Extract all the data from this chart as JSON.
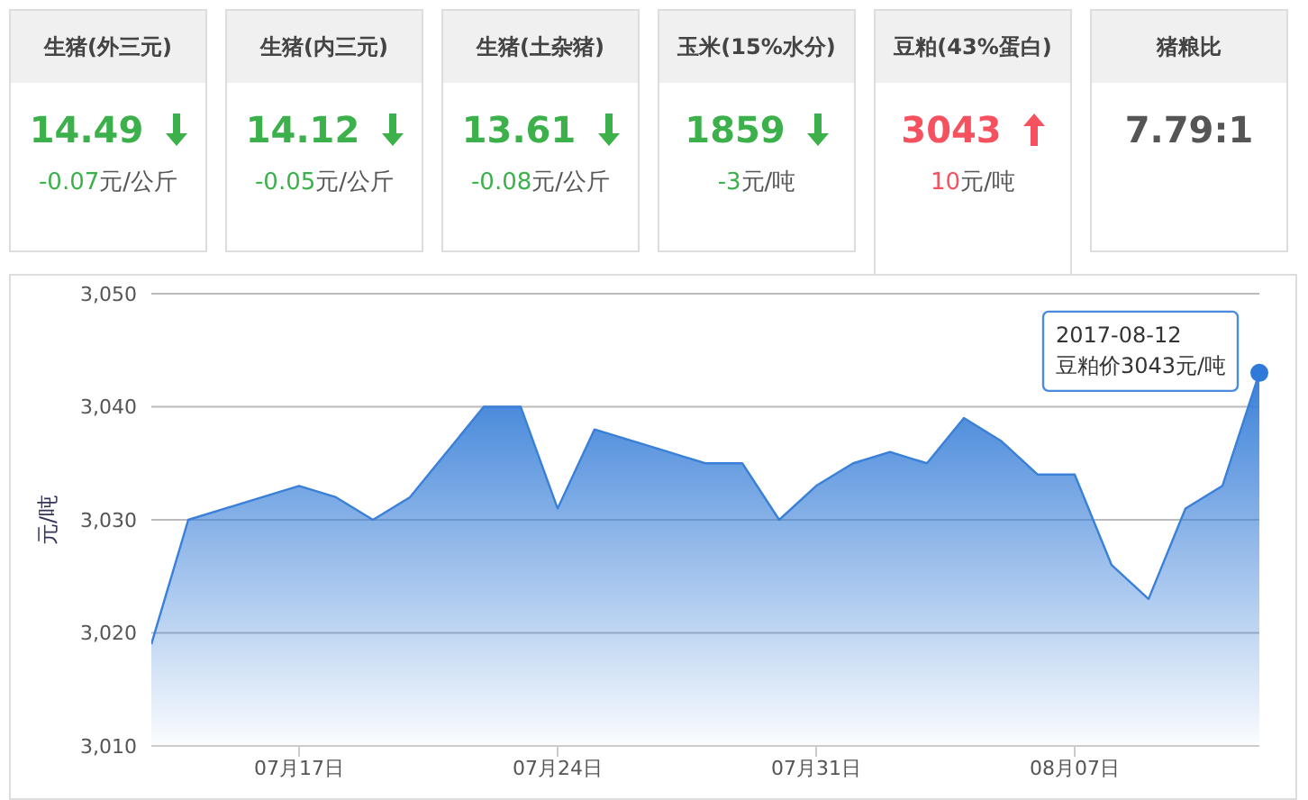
{
  "chart_data": [
    {
      "type": "other",
      "categories": [
        "生猪(外三元)",
        "生猪(内三元)",
        "生猪(土杂猪)",
        "玉米(15%水分)",
        "豆粕(43%蛋白)",
        "猪粮比"
      ],
      "value_labels": [
        "14.49",
        "14.12",
        "13.61",
        "1859",
        "3043",
        "7.79:1"
      ],
      "annotations": [
        "-0.07元/公斤",
        "-0.05元/公斤",
        "-0.08元/公斤",
        "-3元/吨",
        "10元/吨"
      ]
    },
    {
      "type": "area",
      "ylabel": "元/吨",
      "x": [
        "2017-07-13",
        "2017-07-14",
        "2017-07-15",
        "2017-07-16",
        "2017-07-17",
        "2017-07-18",
        "2017-07-19",
        "2017-07-20",
        "2017-07-21",
        "2017-07-22",
        "2017-07-23",
        "2017-07-24",
        "2017-07-25",
        "2017-07-26",
        "2017-07-27",
        "2017-07-28",
        "2017-07-29",
        "2017-07-30",
        "2017-07-31",
        "2017-08-01",
        "2017-08-02",
        "2017-08-03",
        "2017-08-04",
        "2017-08-05",
        "2017-08-06",
        "2017-08-07",
        "2017-08-08",
        "2017-08-09",
        "2017-08-10",
        "2017-08-11",
        "2017-08-12"
      ],
      "series": [
        {
          "color": "#3a80d8",
          "values": [
            3019,
            3030,
            3031,
            3032,
            3033,
            3032,
            3030,
            3032,
            3036,
            3040,
            3040,
            3031,
            3038,
            3037,
            3036,
            3035,
            3035,
            3030,
            3033,
            3035,
            3036,
            3035,
            3039,
            3037,
            3034,
            3034,
            3026,
            3023,
            3031,
            3033,
            3043
          ]
        }
      ],
      "xlim": [
        "2017-07-13",
        "2017-08-12"
      ],
      "xticks": [
        {
          "value": "2017-07-17",
          "label": "07月17日"
        },
        {
          "value": "2017-07-24",
          "label": "07月24日"
        },
        {
          "value": "2017-07-31",
          "label": "07月31日"
        },
        {
          "value": "2017-08-07",
          "label": "08月07日"
        }
      ],
      "ylim": [
        3010,
        3050
      ],
      "yticks": [
        {
          "value": 3010,
          "label": "3,010"
        },
        {
          "value": 3020,
          "label": "3,020"
        },
        {
          "value": 3030,
          "label": "3,030"
        },
        {
          "value": 3040,
          "label": "3,040"
        },
        {
          "value": 3050,
          "label": "3,050"
        }
      ],
      "grid": "y",
      "marker": "none",
      "annotations": [
        {
          "text": "2017-08-12\n豆粕价3043元/吨",
          "x": "2017-08-12",
          "y": 3043
        }
      ]
    }
  ]
}
